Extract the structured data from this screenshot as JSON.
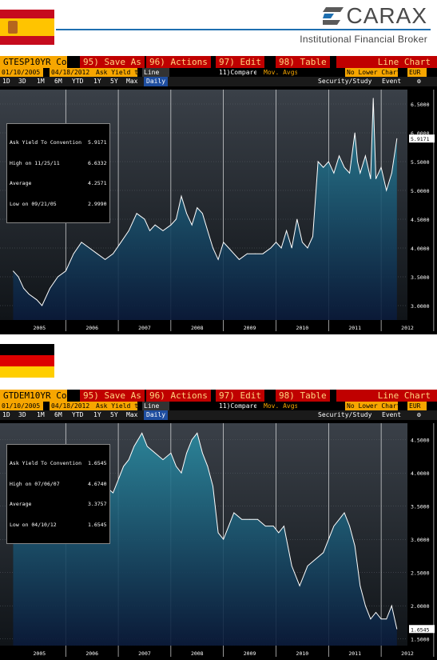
{
  "header": {
    "logo_text": "CARAX",
    "tagline": "Institutional Financial Broker"
  },
  "charts": [
    {
      "ticker": "GTESP10YR Corp",
      "menu": {
        "save": "95) Save As",
        "actions": "96) Actions",
        "edit": "97) Edit",
        "table": "98) Table",
        "title": "Line Chart"
      },
      "start_date": "01/10/2005",
      "end_date": "04/18/2012",
      "field": "Ask Yield to",
      "style": "Line",
      "compare": "11)Compare",
      "mov_avgs": "Mov. Avgs",
      "lower": "No Lower Chart",
      "currency": "EUR",
      "periods": [
        "1D",
        "3D",
        "1M",
        "6M",
        "YTD",
        "1Y",
        "5Y",
        "Max"
      ],
      "period_selected": "Daily",
      "security_study": "Security/Study",
      "event": "Event",
      "legend": [
        {
          "label": "Ask Yield To Convention",
          "value": "5.9171"
        },
        {
          "label": "High on 11/25/11",
          "value": "6.6332"
        },
        {
          "label": "Average",
          "value": "4.2571"
        },
        {
          "label": "Low on 09/21/05",
          "value": "2.9990"
        }
      ],
      "last_label": "5.9171"
    },
    {
      "ticker": "GTDEM10YR Corp",
      "menu": {
        "save": "95) Save As",
        "actions": "96) Actions",
        "edit": "97) Edit",
        "table": "98) Table",
        "title": "Line Chart"
      },
      "start_date": "01/10/2005",
      "end_date": "04/18/2012",
      "field": "Ask Yield to",
      "style": "Line",
      "compare": "11)Compare",
      "mov_avgs": "Mov. Avgs",
      "lower": "No Lower Chart",
      "currency": "EUR",
      "periods": [
        "1D",
        "3D",
        "1M",
        "6M",
        "YTD",
        "1Y",
        "5Y",
        "Max"
      ],
      "period_selected": "Daily",
      "security_study": "Security/Study",
      "event": "Event",
      "legend": [
        {
          "label": "Ask Yield To Convention",
          "value": "1.6545"
        },
        {
          "label": "High on 07/06/07",
          "value": "4.6740"
        },
        {
          "label": "Average",
          "value": "3.3757"
        },
        {
          "label": "Low on 04/10/12",
          "value": "1.6545"
        }
      ],
      "last_label": "1.6545"
    }
  ],
  "chart_data": [
    {
      "type": "area",
      "xlabel": "",
      "ylabel": "",
      "categories": [
        "2005",
        "2006",
        "2007",
        "2008",
        "2009",
        "2010",
        "2011",
        "2012"
      ],
      "ylim": [
        2.75,
        6.75
      ],
      "yticks": [
        "3.0000",
        "3.5000",
        "4.0000",
        "4.5000",
        "5.0000",
        "5.5000",
        "6.0000",
        "6.5000"
      ],
      "x": [
        2005.0,
        2005.1,
        2005.2,
        2005.3,
        2005.45,
        2005.55,
        2005.7,
        2005.85,
        2006.0,
        2006.15,
        2006.3,
        2006.45,
        2006.6,
        2006.75,
        2006.9,
        2007.05,
        2007.2,
        2007.35,
        2007.5,
        2007.6,
        2007.7,
        2007.85,
        2008.0,
        2008.1,
        2008.2,
        2008.3,
        2008.4,
        2008.5,
        2008.6,
        2008.7,
        2008.8,
        2008.9,
        2009.0,
        2009.1,
        2009.2,
        2009.3,
        2009.45,
        2009.6,
        2009.75,
        2009.9,
        2010.0,
        2010.1,
        2010.2,
        2010.3,
        2010.4,
        2010.5,
        2010.6,
        2010.7,
        2010.8,
        2010.9,
        2011.0,
        2011.1,
        2011.2,
        2011.3,
        2011.4,
        2011.5,
        2011.55,
        2011.6,
        2011.7,
        2011.8,
        2011.85,
        2011.9,
        2012.0,
        2012.1,
        2012.2,
        2012.3
      ],
      "values": [
        3.6,
        3.5,
        3.3,
        3.2,
        3.1,
        3.0,
        3.3,
        3.5,
        3.6,
        3.9,
        4.1,
        4.0,
        3.9,
        3.8,
        3.9,
        4.1,
        4.3,
        4.6,
        4.5,
        4.3,
        4.4,
        4.3,
        4.4,
        4.5,
        4.9,
        4.6,
        4.4,
        4.7,
        4.6,
        4.3,
        4.0,
        3.8,
        4.1,
        4.0,
        3.9,
        3.8,
        3.9,
        3.9,
        3.9,
        4.0,
        4.1,
        4.0,
        4.3,
        4.0,
        4.5,
        4.1,
        4.0,
        4.2,
        5.5,
        5.4,
        5.5,
        5.3,
        5.6,
        5.4,
        5.3,
        6.0,
        5.5,
        5.3,
        5.6,
        5.2,
        6.6,
        5.2,
        5.4,
        5.0,
        5.3,
        5.9
      ]
    },
    {
      "type": "area",
      "xlabel": "",
      "ylabel": "",
      "categories": [
        "2005",
        "2006",
        "2007",
        "2008",
        "2009",
        "2010",
        "2011",
        "2012"
      ],
      "ylim": [
        1.4,
        4.75
      ],
      "yticks": [
        "1.5000",
        "2.0000",
        "2.5000",
        "3.0000",
        "3.5000",
        "4.0000",
        "4.5000"
      ],
      "x": [
        2005.0,
        2005.1,
        2005.2,
        2005.3,
        2005.45,
        2005.6,
        2005.75,
        2005.9,
        2006.0,
        2006.15,
        2006.3,
        2006.45,
        2006.6,
        2006.75,
        2006.9,
        2007.0,
        2007.1,
        2007.2,
        2007.3,
        2007.45,
        2007.55,
        2007.7,
        2007.85,
        2008.0,
        2008.1,
        2008.2,
        2008.3,
        2008.4,
        2008.5,
        2008.6,
        2008.7,
        2008.8,
        2008.9,
        2009.0,
        2009.1,
        2009.2,
        2009.35,
        2009.5,
        2009.65,
        2009.8,
        2009.95,
        2010.05,
        2010.15,
        2010.3,
        2010.45,
        2010.6,
        2010.75,
        2010.9,
        2011.0,
        2011.1,
        2011.2,
        2011.3,
        2011.4,
        2011.5,
        2011.6,
        2011.7,
        2011.8,
        2011.9,
        2012.0,
        2012.1,
        2012.2,
        2012.3
      ],
      "values": [
        3.5,
        3.4,
        3.5,
        3.3,
        3.3,
        3.1,
        3.2,
        3.3,
        3.4,
        3.7,
        3.9,
        4.0,
        3.9,
        3.8,
        3.7,
        3.9,
        4.1,
        4.2,
        4.4,
        4.6,
        4.4,
        4.3,
        4.2,
        4.3,
        4.1,
        4.0,
        4.3,
        4.5,
        4.6,
        4.3,
        4.1,
        3.8,
        3.1,
        3.0,
        3.2,
        3.4,
        3.3,
        3.3,
        3.3,
        3.2,
        3.2,
        3.1,
        3.2,
        2.6,
        2.3,
        2.6,
        2.7,
        2.8,
        3.0,
        3.2,
        3.3,
        3.4,
        3.2,
        2.9,
        2.3,
        2.0,
        1.8,
        1.9,
        1.8,
        1.8,
        2.0,
        1.65
      ]
    }
  ]
}
